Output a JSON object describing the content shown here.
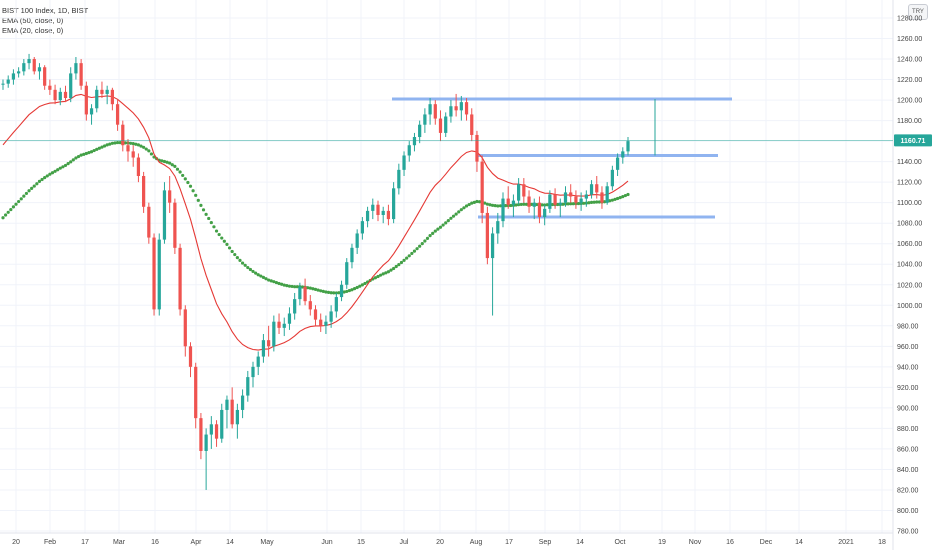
{
  "legend": {
    "symbol_line": "BIST 100 Index, 1D, BIST",
    "ema50_line": "EMA (50, close, 0)",
    "ema20_line": "EMA (20, close, 0)"
  },
  "corner_label": "TRY",
  "colors": {
    "up": "#26a69a",
    "down": "#ef5350",
    "ema20": "#e53935",
    "ema50": "#43a047",
    "level_lines": "#90b4f0",
    "last_price_line": "#26a69a",
    "grid": "#f0f3fa"
  },
  "chart_data": {
    "type": "candlestick",
    "title": "BIST 100 Index",
    "interval": "1D",
    "exchange": "BIST",
    "currency": "TRY",
    "ylim": [
      780,
      1280
    ],
    "y_ticks": [
      "780.00",
      "800.00",
      "820.00",
      "840.00",
      "860.00",
      "880.00",
      "900.00",
      "920.00",
      "940.00",
      "960.00",
      "980.00",
      "1000.00",
      "1020.00",
      "1040.00",
      "1060.00",
      "1080.00",
      "1100.00",
      "1120.00",
      "1140.00",
      "1160.00",
      "1180.00",
      "1200.00",
      "1220.00",
      "1240.00",
      "1260.00",
      "1280.00"
    ],
    "x_ticks": [
      "20",
      "Feb",
      "17",
      "Mar",
      "16",
      "Apr",
      "14",
      "May",
      "Jun",
      "15",
      "Jul",
      "20",
      "Aug",
      "17",
      "Sep",
      "14",
      "Oct",
      "19",
      "Nov",
      "16",
      "Dec",
      "14",
      "2021",
      "18"
    ],
    "last_price": "1160.71",
    "last_price_value": 1160.71,
    "candles": [
      [
        1215,
        1220,
        1210,
        1216
      ],
      [
        1216,
        1224,
        1212,
        1220
      ],
      [
        1220,
        1230,
        1215,
        1226
      ],
      [
        1226,
        1232,
        1222,
        1228
      ],
      [
        1228,
        1240,
        1224,
        1236
      ],
      [
        1236,
        1245,
        1230,
        1240
      ],
      [
        1240,
        1242,
        1225,
        1228
      ],
      [
        1228,
        1236,
        1220,
        1232
      ],
      [
        1232,
        1234,
        1210,
        1214
      ],
      [
        1214,
        1220,
        1205,
        1210
      ],
      [
        1210,
        1215,
        1196,
        1200
      ],
      [
        1200,
        1212,
        1195,
        1208
      ],
      [
        1208,
        1214,
        1198,
        1202
      ],
      [
        1202,
        1232,
        1198,
        1226
      ],
      [
        1226,
        1242,
        1220,
        1236
      ],
      [
        1236,
        1240,
        1210,
        1214
      ],
      [
        1214,
        1218,
        1180,
        1186
      ],
      [
        1186,
        1196,
        1176,
        1192
      ],
      [
        1192,
        1214,
        1188,
        1210
      ],
      [
        1210,
        1218,
        1202,
        1206
      ],
      [
        1206,
        1214,
        1196,
        1210
      ],
      [
        1210,
        1212,
        1190,
        1196
      ],
      [
        1196,
        1200,
        1170,
        1176
      ],
      [
        1176,
        1180,
        1150,
        1156
      ],
      [
        1156,
        1162,
        1140,
        1150
      ],
      [
        1150,
        1156,
        1135,
        1144
      ],
      [
        1144,
        1148,
        1120,
        1126
      ],
      [
        1126,
        1130,
        1090,
        1096
      ],
      [
        1096,
        1100,
        1060,
        1066
      ],
      [
        1066,
        1070,
        990,
        996
      ],
      [
        996,
        1070,
        990,
        1064
      ],
      [
        1064,
        1120,
        1060,
        1112
      ],
      [
        1112,
        1126,
        1090,
        1100
      ],
      [
        1100,
        1104,
        1050,
        1056
      ],
      [
        1056,
        1060,
        990,
        996
      ],
      [
        996,
        1000,
        950,
        960
      ],
      [
        960,
        964,
        930,
        940
      ],
      [
        940,
        944,
        880,
        890
      ],
      [
        890,
        895,
        850,
        858
      ],
      [
        858,
        880,
        820,
        874
      ],
      [
        874,
        892,
        860,
        884
      ],
      [
        884,
        888,
        862,
        870
      ],
      [
        870,
        904,
        866,
        898
      ],
      [
        898,
        912,
        880,
        908
      ],
      [
        908,
        920,
        880,
        884
      ],
      [
        884,
        904,
        870,
        898
      ],
      [
        898,
        918,
        890,
        912
      ],
      [
        912,
        936,
        906,
        930
      ],
      [
        930,
        945,
        920,
        940
      ],
      [
        940,
        955,
        932,
        950
      ],
      [
        950,
        972,
        944,
        966
      ],
      [
        966,
        980,
        950,
        960
      ],
      [
        960,
        990,
        955,
        984
      ],
      [
        984,
        992,
        972,
        978
      ],
      [
        978,
        988,
        970,
        982
      ],
      [
        982,
        998,
        976,
        992
      ],
      [
        992,
        1012,
        986,
        1006
      ],
      [
        1006,
        1022,
        1000,
        1018
      ],
      [
        1018,
        1026,
        1000,
        1004
      ],
      [
        1004,
        1010,
        990,
        996
      ],
      [
        996,
        1000,
        980,
        986
      ],
      [
        986,
        992,
        974,
        980
      ],
      [
        980,
        990,
        972,
        984
      ],
      [
        984,
        1000,
        978,
        994
      ],
      [
        994,
        1012,
        988,
        1008
      ],
      [
        1008,
        1024,
        1004,
        1020
      ],
      [
        1020,
        1046,
        1016,
        1042
      ],
      [
        1042,
        1060,
        1036,
        1056
      ],
      [
        1056,
        1074,
        1050,
        1070
      ],
      [
        1070,
        1086,
        1064,
        1082
      ],
      [
        1082,
        1096,
        1076,
        1092
      ],
      [
        1092,
        1104,
        1084,
        1098
      ],
      [
        1098,
        1102,
        1082,
        1088
      ],
      [
        1088,
        1096,
        1080,
        1092
      ],
      [
        1092,
        1098,
        1078,
        1084
      ],
      [
        1084,
        1120,
        1080,
        1114
      ],
      [
        1114,
        1138,
        1108,
        1132
      ],
      [
        1132,
        1150,
        1126,
        1146
      ],
      [
        1146,
        1160,
        1140,
        1156
      ],
      [
        1156,
        1168,
        1150,
        1164
      ],
      [
        1164,
        1180,
        1158,
        1176
      ],
      [
        1176,
        1192,
        1168,
        1186
      ],
      [
        1186,
        1202,
        1176,
        1196
      ],
      [
        1196,
        1200,
        1176,
        1182
      ],
      [
        1182,
        1190,
        1160,
        1168
      ],
      [
        1168,
        1188,
        1164,
        1184
      ],
      [
        1184,
        1200,
        1178,
        1194
      ],
      [
        1194,
        1206,
        1184,
        1190
      ],
      [
        1190,
        1204,
        1180,
        1198
      ],
      [
        1198,
        1202,
        1180,
        1186
      ],
      [
        1186,
        1192,
        1160,
        1166
      ],
      [
        1166,
        1170,
        1130,
        1140
      ],
      [
        1140,
        1146,
        1080,
        1090
      ],
      [
        1090,
        1096,
        1040,
        1046
      ],
      [
        1046,
        1076,
        990,
        1070
      ],
      [
        1070,
        1090,
        1060,
        1082
      ],
      [
        1082,
        1110,
        1076,
        1104
      ],
      [
        1104,
        1116,
        1094,
        1098
      ],
      [
        1098,
        1108,
        1086,
        1102
      ],
      [
        1102,
        1124,
        1098,
        1118
      ],
      [
        1118,
        1124,
        1100,
        1106
      ],
      [
        1106,
        1112,
        1090,
        1096
      ],
      [
        1096,
        1104,
        1084,
        1100
      ],
      [
        1100,
        1106,
        1080,
        1086
      ],
      [
        1086,
        1098,
        1078,
        1094
      ],
      [
        1094,
        1112,
        1090,
        1108
      ],
      [
        1108,
        1114,
        1094,
        1098
      ],
      [
        1098,
        1104,
        1086,
        1100
      ],
      [
        1100,
        1116,
        1096,
        1110
      ],
      [
        1110,
        1118,
        1100,
        1106
      ],
      [
        1106,
        1112,
        1094,
        1100
      ],
      [
        1100,
        1110,
        1092,
        1104
      ],
      [
        1104,
        1112,
        1096,
        1108
      ],
      [
        1108,
        1122,
        1104,
        1118
      ],
      [
        1118,
        1126,
        1104,
        1110
      ],
      [
        1110,
        1116,
        1094,
        1100
      ],
      [
        1100,
        1120,
        1098,
        1116
      ],
      [
        1116,
        1136,
        1112,
        1132
      ],
      [
        1132,
        1148,
        1126,
        1144
      ],
      [
        1144,
        1154,
        1138,
        1150
      ],
      [
        1150,
        1164,
        1146,
        1160
      ]
    ],
    "levels": [
      {
        "name": "resistance-upper",
        "value": 1201
      },
      {
        "name": "resistance-middle",
        "value": 1146
      },
      {
        "name": "support-lower",
        "value": 1086
      }
    ]
  }
}
